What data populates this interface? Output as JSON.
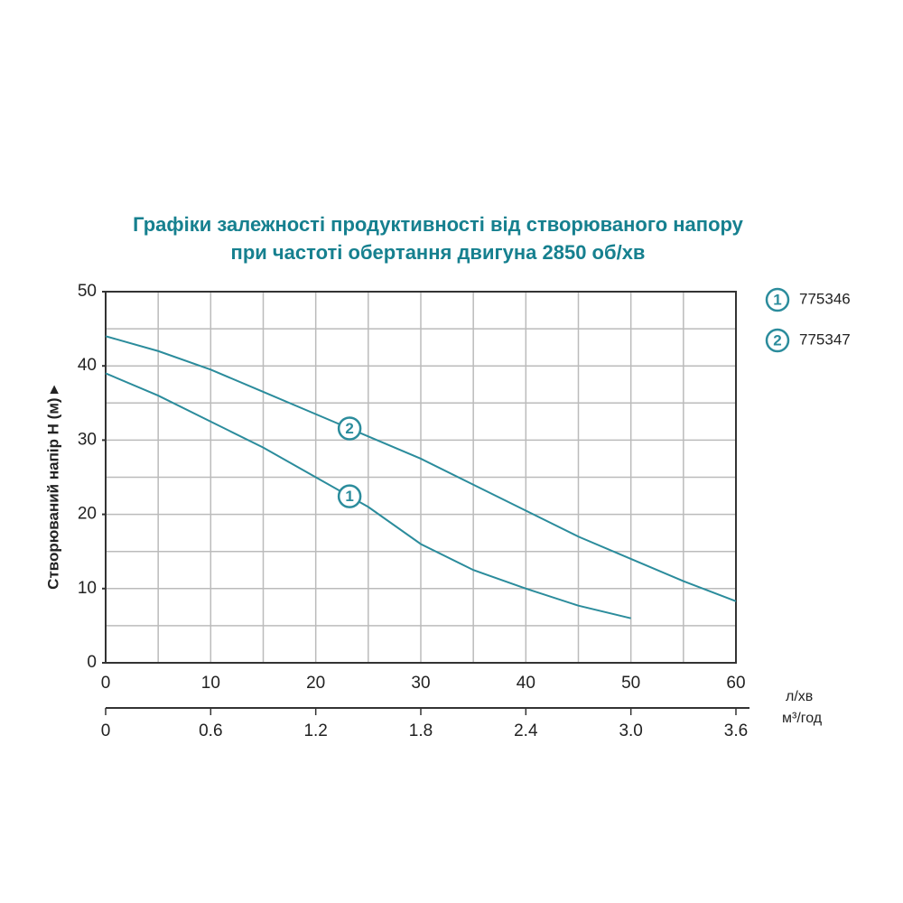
{
  "chart_data": {
    "type": "line",
    "title": "Графіки залежності продуктивності від створюваного напору",
    "subtitle": "при частоті обертання двигуна 2850 об/хв",
    "y_label": "Створюваний напір H (м) ▸",
    "x_unit": "л/хв",
    "x2_unit": "м³/год",
    "x": [
      0,
      5,
      10,
      15,
      20,
      25,
      30,
      35,
      40,
      45,
      50,
      55,
      60
    ],
    "series": [
      {
        "name": "775346",
        "marker": "1",
        "color": "#2b8c9c",
        "values": [
          39,
          36,
          32.5,
          29,
          25,
          21,
          16,
          12.5,
          10,
          7.7,
          6,
          null,
          null
        ]
      },
      {
        "name": "775347",
        "marker": "2",
        "color": "#2b8c9c",
        "values": [
          44,
          42,
          39.5,
          36.5,
          33.5,
          30.5,
          27.5,
          24,
          20.5,
          17,
          14,
          11,
          8.3
        ]
      }
    ],
    "xlim": [
      0,
      60
    ],
    "xticks": [
      0,
      10,
      20,
      30,
      40,
      50,
      60
    ],
    "x2lim": [
      0,
      3.6
    ],
    "x2ticks": [
      0,
      0.6,
      1.2,
      1.8,
      2.4,
      {
        "value": 3,
        "label": "3.0"
      },
      3.6
    ],
    "ylim": [
      0,
      50
    ],
    "yticks": [
      0,
      10,
      20,
      30,
      40,
      50
    ],
    "xgrid": [
      5,
      10,
      15,
      20,
      25,
      30,
      35,
      40,
      45,
      50,
      55
    ],
    "ygrid": [
      5,
      10,
      15,
      20,
      25,
      30,
      35,
      40,
      45
    ],
    "grid": true
  }
}
